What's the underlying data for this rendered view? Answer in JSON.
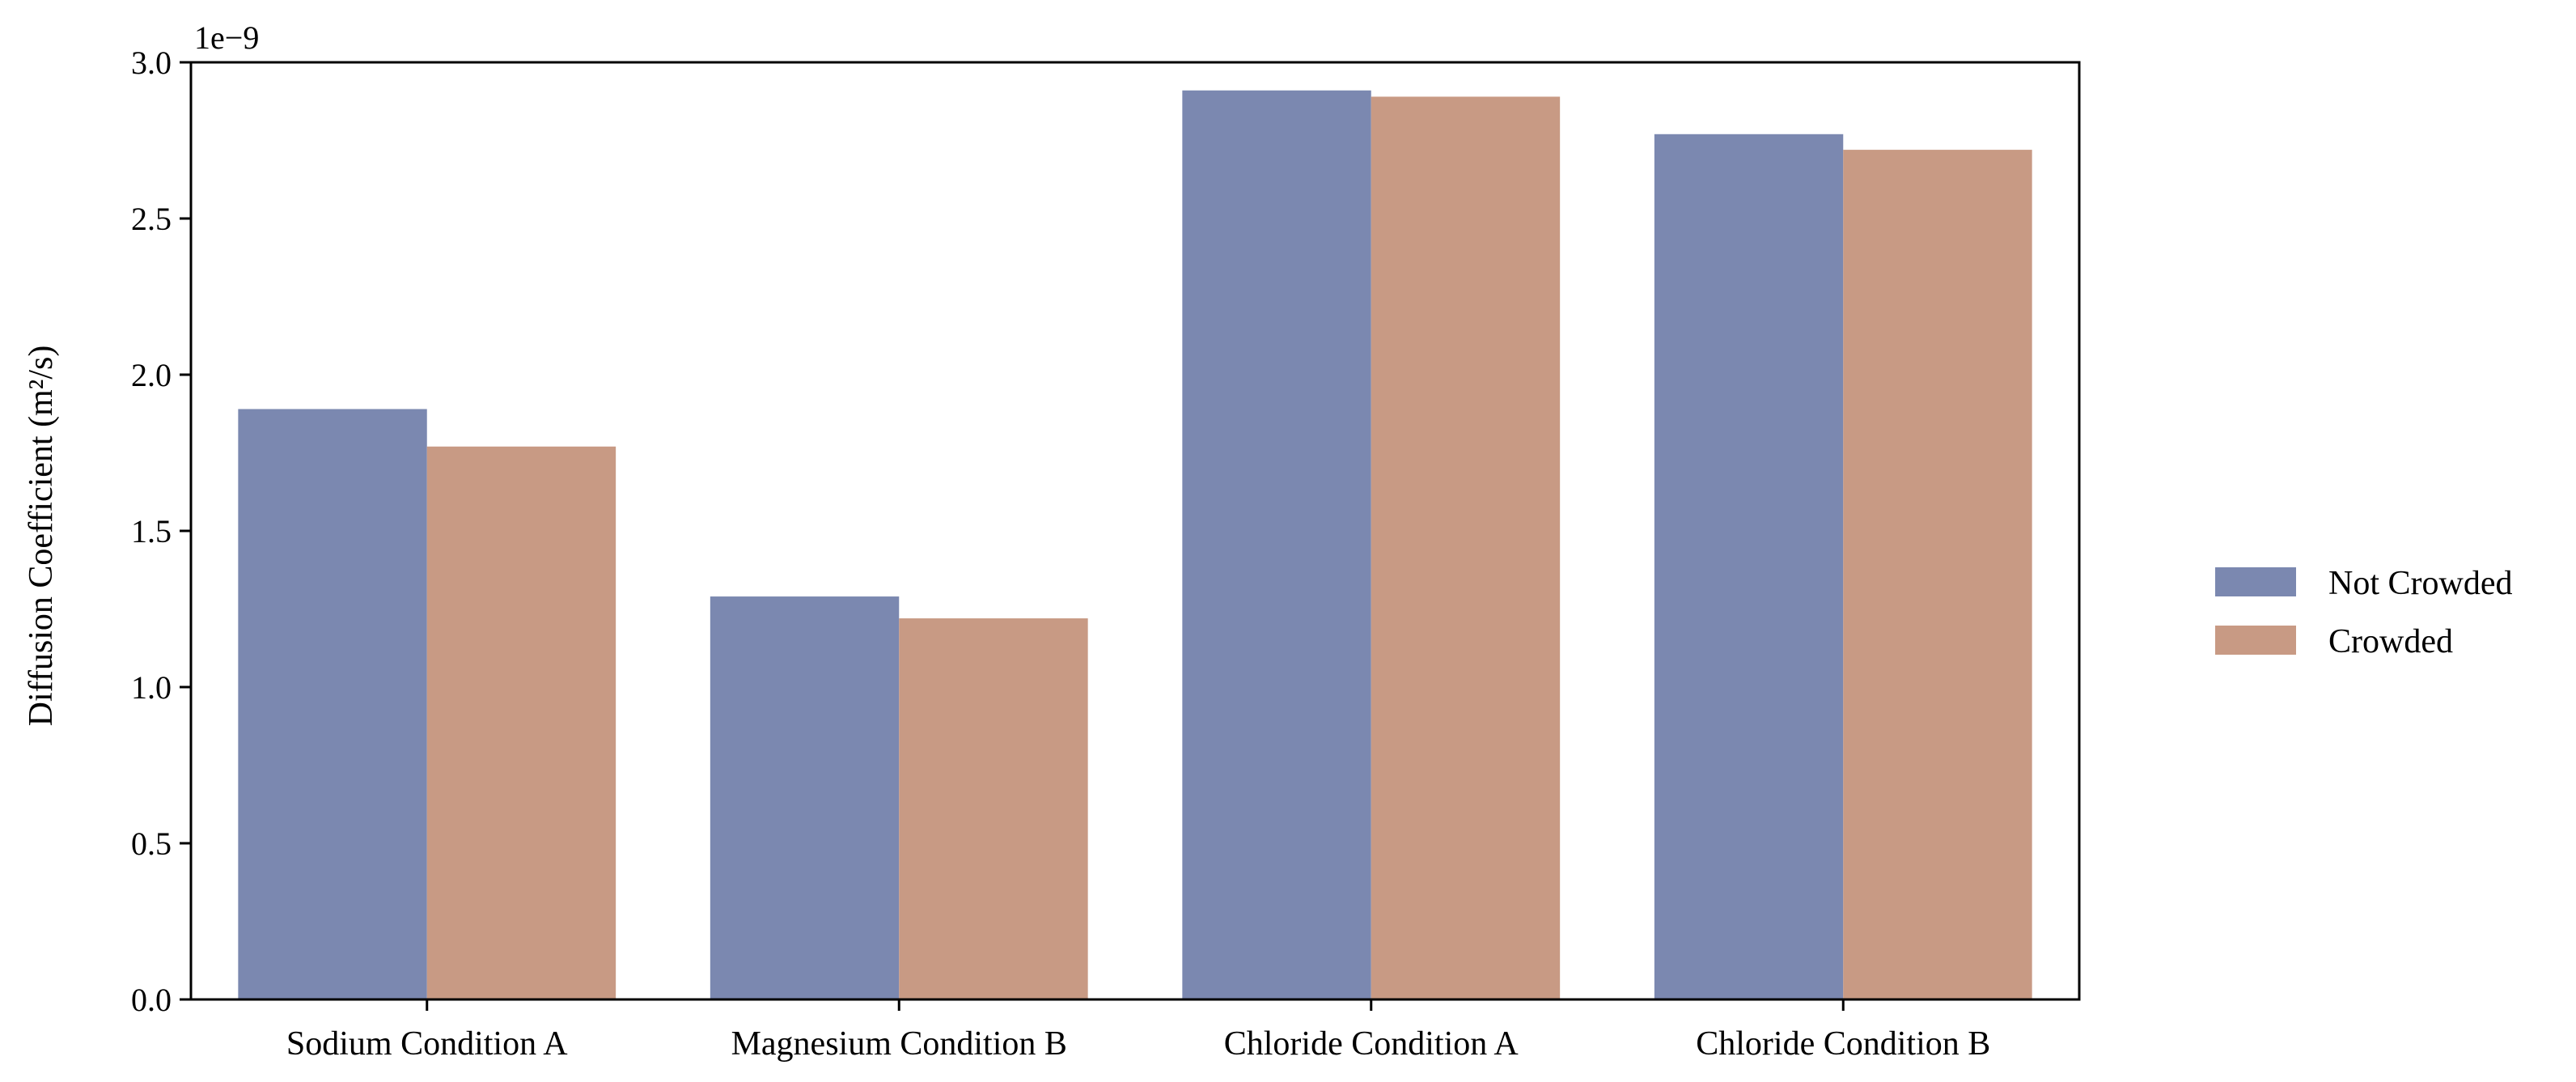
{
  "chart_data": {
    "type": "bar",
    "categories": [
      "Sodium Condition A",
      "Magnesium Condition B",
      "Chloride Condition A",
      "Chloride Condition B"
    ],
    "series": [
      {
        "name": "Not Crowded",
        "values": [
          1.89e-09,
          1.29e-09,
          2.91e-09,
          2.77e-09
        ],
        "color": "#7b88b0"
      },
      {
        "name": "Crowded",
        "values": [
          1.77e-09,
          1.22e-09,
          2.89e-09,
          2.72e-09
        ],
        "color": "#c89a84"
      }
    ],
    "ylabel": "Diffusion Coefficient (m²/s)",
    "xlabel": "",
    "title": "",
    "ylim": [
      0,
      3e-09
    ],
    "y_offset_label": "1e−9",
    "y_ticks": [
      "0.0",
      "0.5",
      "1.0",
      "1.5",
      "2.0",
      "2.5",
      "3.0"
    ],
    "grid": false,
    "legend_position": "right"
  }
}
